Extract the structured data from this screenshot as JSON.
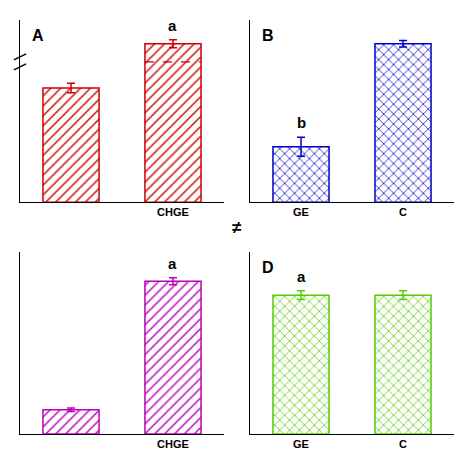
{
  "chart_data": [
    {
      "type": "bar",
      "title": "A",
      "categories": [
        null,
        "CHGE"
      ],
      "values": [
        0.72,
        1.0
      ],
      "errors": [
        0.03,
        0.025
      ],
      "annotations": [
        null,
        "a"
      ],
      "color": "#CC0000",
      "ylim": [
        0,
        1.15
      ],
      "tick_labels": "x",
      "grid": false,
      "axis_break": 0.8855
    },
    {
      "type": "bar",
      "title": "B",
      "categories": [
        "GE",
        "C"
      ],
      "values": [
        0.35,
        1.0
      ],
      "errors": [
        0.06,
        0.02
      ],
      "annotations": [
        "b",
        null
      ],
      "color": "#0000CC",
      "ylim": [
        0,
        1.15
      ],
      "tick_labels": "x",
      "grid": false
    },
    {
      "type": "bar",
      "categories": [
        null,
        "CHGE"
      ],
      "values": [
        0.14,
        0.88
      ],
      "errors": [
        0.01,
        0.02
      ],
      "annotations": [
        null,
        "a"
      ],
      "color": "#BB00BB",
      "ylim": [
        0,
        1.05
      ],
      "tick_labels": "x",
      "grid": false
    },
    {
      "type": "bar",
      "title": "D",
      "categories": [
        "GE",
        "C"
      ],
      "values": [
        0.8,
        0.8
      ],
      "errors": [
        0.025,
        0.025
      ],
      "annotations": [
        "a",
        null
      ],
      "color": "#55CC00",
      "ylim": [
        0,
        1.05
      ],
      "tick_labels": "x",
      "grid": false
    }
  ],
  "annotations": [
    "≠"
  ]
}
